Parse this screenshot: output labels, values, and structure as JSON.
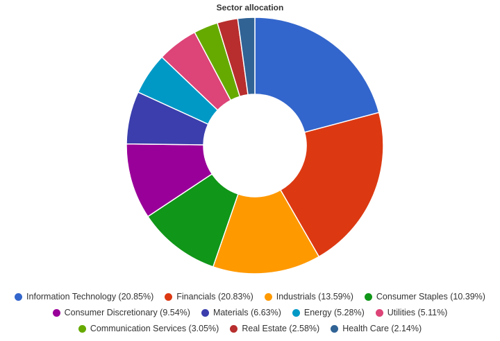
{
  "chart_data": {
    "type": "pie",
    "donut": true,
    "title": "Sector allocation",
    "legend_position": "bottom",
    "slices": [
      {
        "label": "Information Technology",
        "value": 20.85,
        "legend_text": "Information Technology (20.85%)",
        "color": "#3366CC"
      },
      {
        "label": "Financials",
        "value": 20.83,
        "legend_text": "Financials (20.83%)",
        "color": "#DC3912"
      },
      {
        "label": "Industrials",
        "value": 13.59,
        "legend_text": "Industrials (13.59%)",
        "color": "#FF9900"
      },
      {
        "label": "Consumer Staples",
        "value": 10.39,
        "legend_text": "Consumer Staples (10.39%)",
        "color": "#109618"
      },
      {
        "label": "Consumer Discretionary",
        "value": 9.54,
        "legend_text": "Consumer Discretionary (9.54%)",
        "color": "#990099"
      },
      {
        "label": "Materials",
        "value": 6.63,
        "legend_text": "Materials (6.63%)",
        "color": "#3B3EAC"
      },
      {
        "label": "Energy",
        "value": 5.28,
        "legend_text": "Energy (5.28%)",
        "color": "#0099C6"
      },
      {
        "label": "Utilities",
        "value": 5.11,
        "legend_text": "Utilities (5.11%)",
        "color": "#DD4477"
      },
      {
        "label": "Communication Services",
        "value": 3.05,
        "legend_text": "Communication Services (3.05%)",
        "color": "#66AA00"
      },
      {
        "label": "Real Estate",
        "value": 2.58,
        "legend_text": "Real Estate (2.58%)",
        "color": "#B82E2E"
      },
      {
        "label": "Health Care",
        "value": 2.14,
        "legend_text": "Health Care (2.14%)",
        "color": "#316395"
      }
    ]
  }
}
